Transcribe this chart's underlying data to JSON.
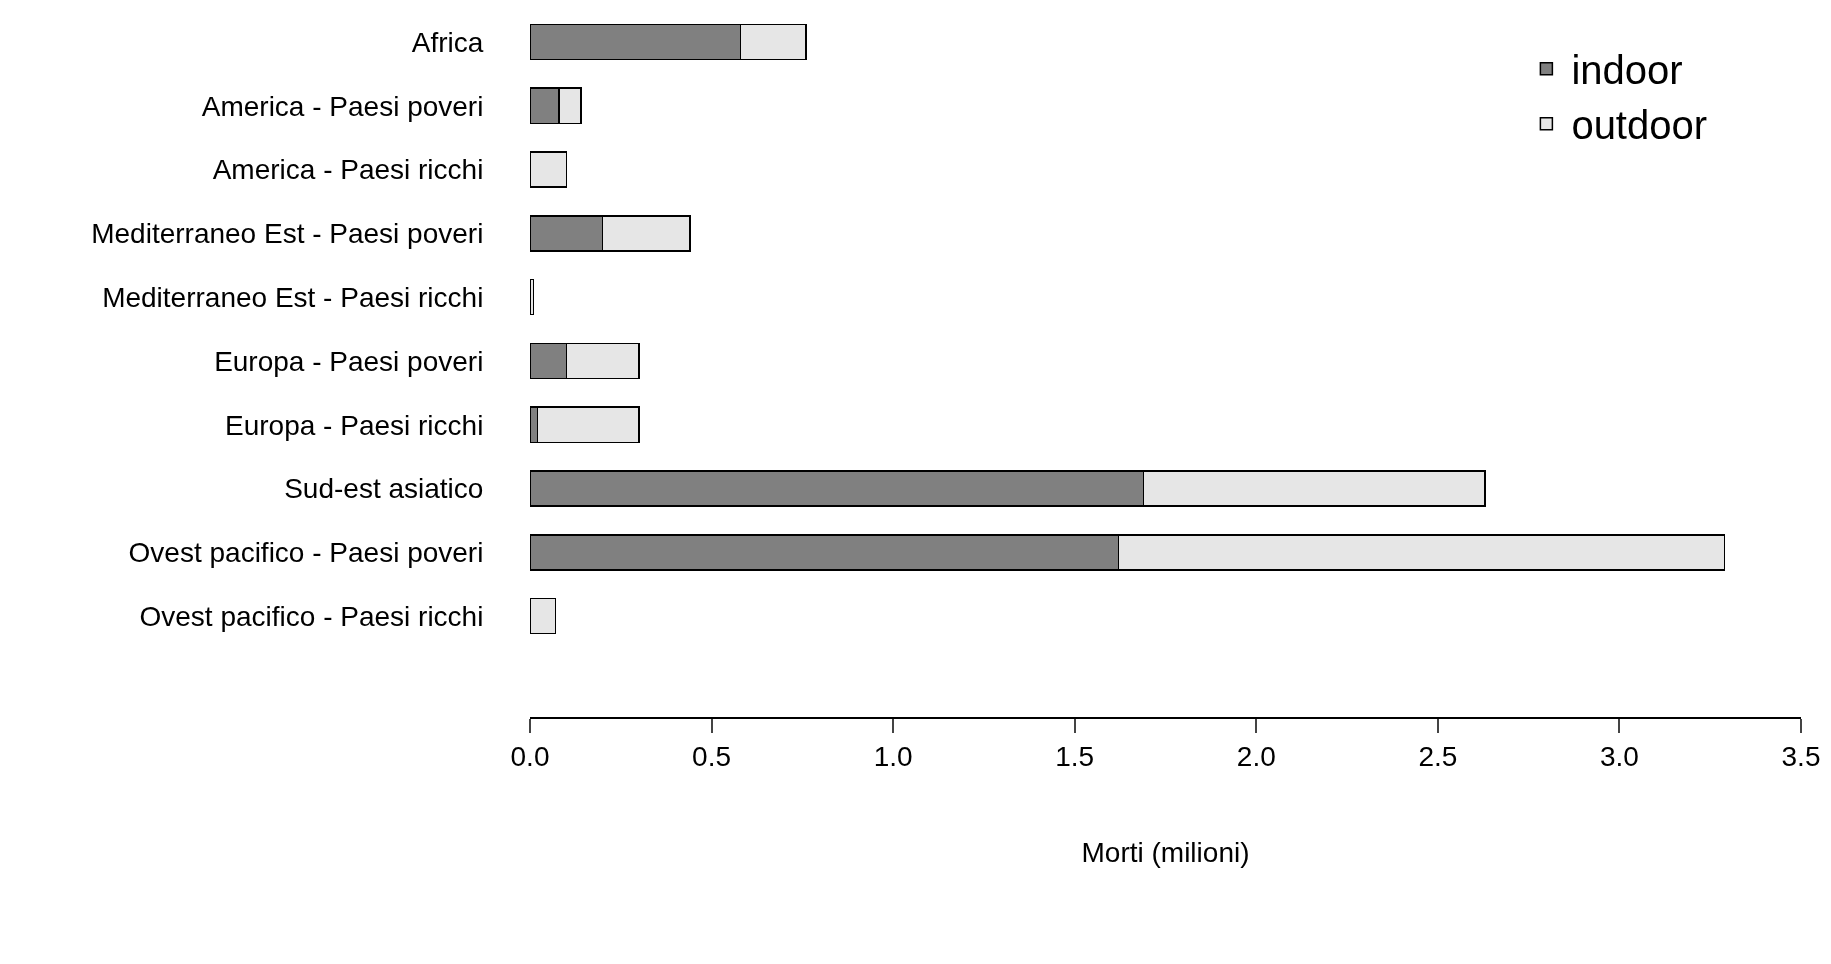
{
  "chart_data": {
    "type": "bar",
    "orientation": "horizontal",
    "stacked": true,
    "xlabel": "Morti (milioni)",
    "categories": [
      "Africa",
      "America - Paesi poveri",
      "America - Paesi ricchi",
      "Mediterraneo Est - Paesi poveri",
      "Mediterraneo Est - Paesi ricchi",
      "Europa - Paesi poveri",
      "Europa - Paesi ricchi",
      "Sud-est asiatico",
      "Ovest pacifico - Paesi poveri",
      "Ovest pacifico - Paesi ricchi"
    ],
    "series": [
      {
        "name": "indoor",
        "color": "#808080",
        "values": [
          0.58,
          0.08,
          null,
          0.2,
          null,
          0.1,
          0.02,
          1.69,
          1.62,
          null
        ]
      },
      {
        "name": "outdoor",
        "color": "#e6e6e6",
        "values": [
          0.18,
          0.06,
          0.1,
          0.24,
          0.01,
          0.2,
          0.28,
          0.94,
          1.67,
          0.07
        ]
      }
    ],
    "xlim": [
      0,
      3.5
    ],
    "xticks": [
      {
        "value": 0,
        "label": "0.0"
      },
      {
        "value": 0.5,
        "label": "0.5"
      },
      {
        "value": 1,
        "label": "1.0"
      },
      {
        "value": 1.5,
        "label": "1.5"
      },
      {
        "value": 2,
        "label": "2.0"
      },
      {
        "value": 2.5,
        "label": "2.5"
      },
      {
        "value": 3,
        "label": "3.0"
      },
      {
        "value": 3.5,
        "label": "3.5"
      }
    ],
    "grid": false,
    "legend": "top right"
  }
}
